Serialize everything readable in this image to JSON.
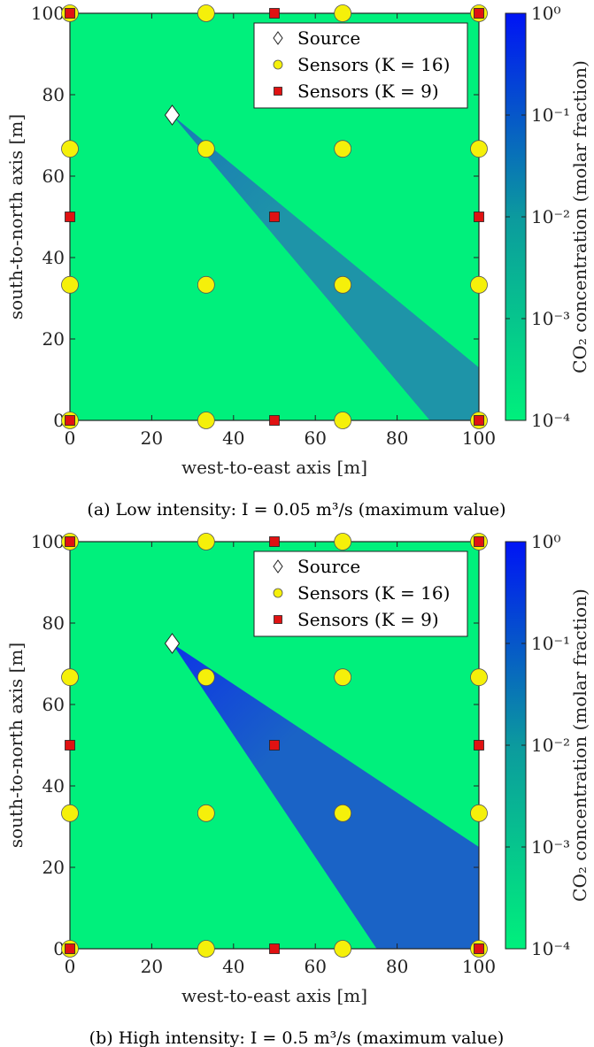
{
  "chart_data": [
    {
      "type": "heatmap",
      "caption": "(a) Low intensity: I = 0.05 m³/s (maximum value)",
      "xlabel": "west-to-east axis [m]",
      "ylabel": "south-to-north axis [m]",
      "xlim": [
        0,
        100
      ],
      "ylim": [
        0,
        100
      ],
      "xticks": [
        "0",
        "20",
        "40",
        "60",
        "80",
        "100"
      ],
      "yticks": [
        "0",
        "20",
        "40",
        "60",
        "80",
        "100"
      ],
      "colorbar": {
        "label": "CO₂ concentration (molar fraction)",
        "scale": "log",
        "range": [
          0.0001,
          1
        ],
        "ticks": [
          "10⁰",
          "10⁻¹",
          "10⁻²",
          "10⁻³",
          "10⁻⁴"
        ],
        "colors": [
          "#00f07c",
          "#0014f5"
        ]
      },
      "legend": {
        "position": "top-right",
        "entries": [
          "Source",
          "Sensors (K = 16)",
          "Sensors (K = 9)"
        ]
      },
      "source": {
        "x": 25,
        "y": 75
      },
      "plume": {
        "polygon": [
          [
            25,
            75
          ],
          [
            100,
            13
          ],
          [
            100,
            0
          ],
          [
            88,
            0
          ]
        ],
        "color": "#1e94a8",
        "tip_color": "#1978b8"
      },
      "sensors_k16": [
        [
          0,
          0
        ],
        [
          33.3,
          0
        ],
        [
          66.7,
          0
        ],
        [
          100,
          0
        ],
        [
          0,
          33.3
        ],
        [
          33.3,
          33.3
        ],
        [
          66.7,
          33.3
        ],
        [
          100,
          33.3
        ],
        [
          0,
          66.7
        ],
        [
          33.3,
          66.7
        ],
        [
          66.7,
          66.7
        ],
        [
          100,
          66.7
        ],
        [
          0,
          100
        ],
        [
          33.3,
          100
        ],
        [
          66.7,
          100
        ],
        [
          100,
          100
        ]
      ],
      "sensors_k9": [
        [
          0,
          0
        ],
        [
          50,
          0
        ],
        [
          100,
          0
        ],
        [
          0,
          50
        ],
        [
          50,
          50
        ],
        [
          100,
          50
        ],
        [
          0,
          100
        ],
        [
          50,
          100
        ],
        [
          100,
          100
        ]
      ]
    },
    {
      "type": "heatmap",
      "caption": "(b) High intensity: I = 0.5 m³/s (maximum value)",
      "xlabel": "west-to-east axis [m]",
      "ylabel": "south-to-north axis [m]",
      "xlim": [
        0,
        100
      ],
      "ylim": [
        0,
        100
      ],
      "xticks": [
        "0",
        "20",
        "40",
        "60",
        "80",
        "100"
      ],
      "yticks": [
        "0",
        "20",
        "40",
        "60",
        "80",
        "100"
      ],
      "colorbar": {
        "label": "CO₂ concentration (molar fraction)",
        "scale": "log",
        "range": [
          0.0001,
          1
        ],
        "ticks": [
          "10⁰",
          "10⁻¹",
          "10⁻²",
          "10⁻³",
          "10⁻⁴"
        ],
        "colors": [
          "#00f07c",
          "#0014f5"
        ]
      },
      "legend": {
        "position": "top-right",
        "entries": [
          "Source",
          "Sensors (K = 16)",
          "Sensors (K = 9)"
        ]
      },
      "source": {
        "x": 25,
        "y": 75
      },
      "plume": {
        "polygon": [
          [
            25,
            75
          ],
          [
            100,
            25
          ],
          [
            100,
            0
          ],
          [
            75,
            0
          ]
        ],
        "color": "#1a63c6",
        "tip_color": "#0d35e6"
      },
      "sensors_k16": [
        [
          0,
          0
        ],
        [
          33.3,
          0
        ],
        [
          66.7,
          0
        ],
        [
          100,
          0
        ],
        [
          0,
          33.3
        ],
        [
          33.3,
          33.3
        ],
        [
          66.7,
          33.3
        ],
        [
          100,
          33.3
        ],
        [
          0,
          66.7
        ],
        [
          33.3,
          66.7
        ],
        [
          66.7,
          66.7
        ],
        [
          100,
          66.7
        ],
        [
          0,
          100
        ],
        [
          33.3,
          100
        ],
        [
          66.7,
          100
        ],
        [
          100,
          100
        ]
      ],
      "sensors_k9": [
        [
          0,
          0
        ],
        [
          50,
          0
        ],
        [
          100,
          0
        ],
        [
          0,
          50
        ],
        [
          50,
          50
        ],
        [
          100,
          50
        ],
        [
          0,
          100
        ],
        [
          50,
          100
        ],
        [
          100,
          100
        ]
      ]
    }
  ]
}
